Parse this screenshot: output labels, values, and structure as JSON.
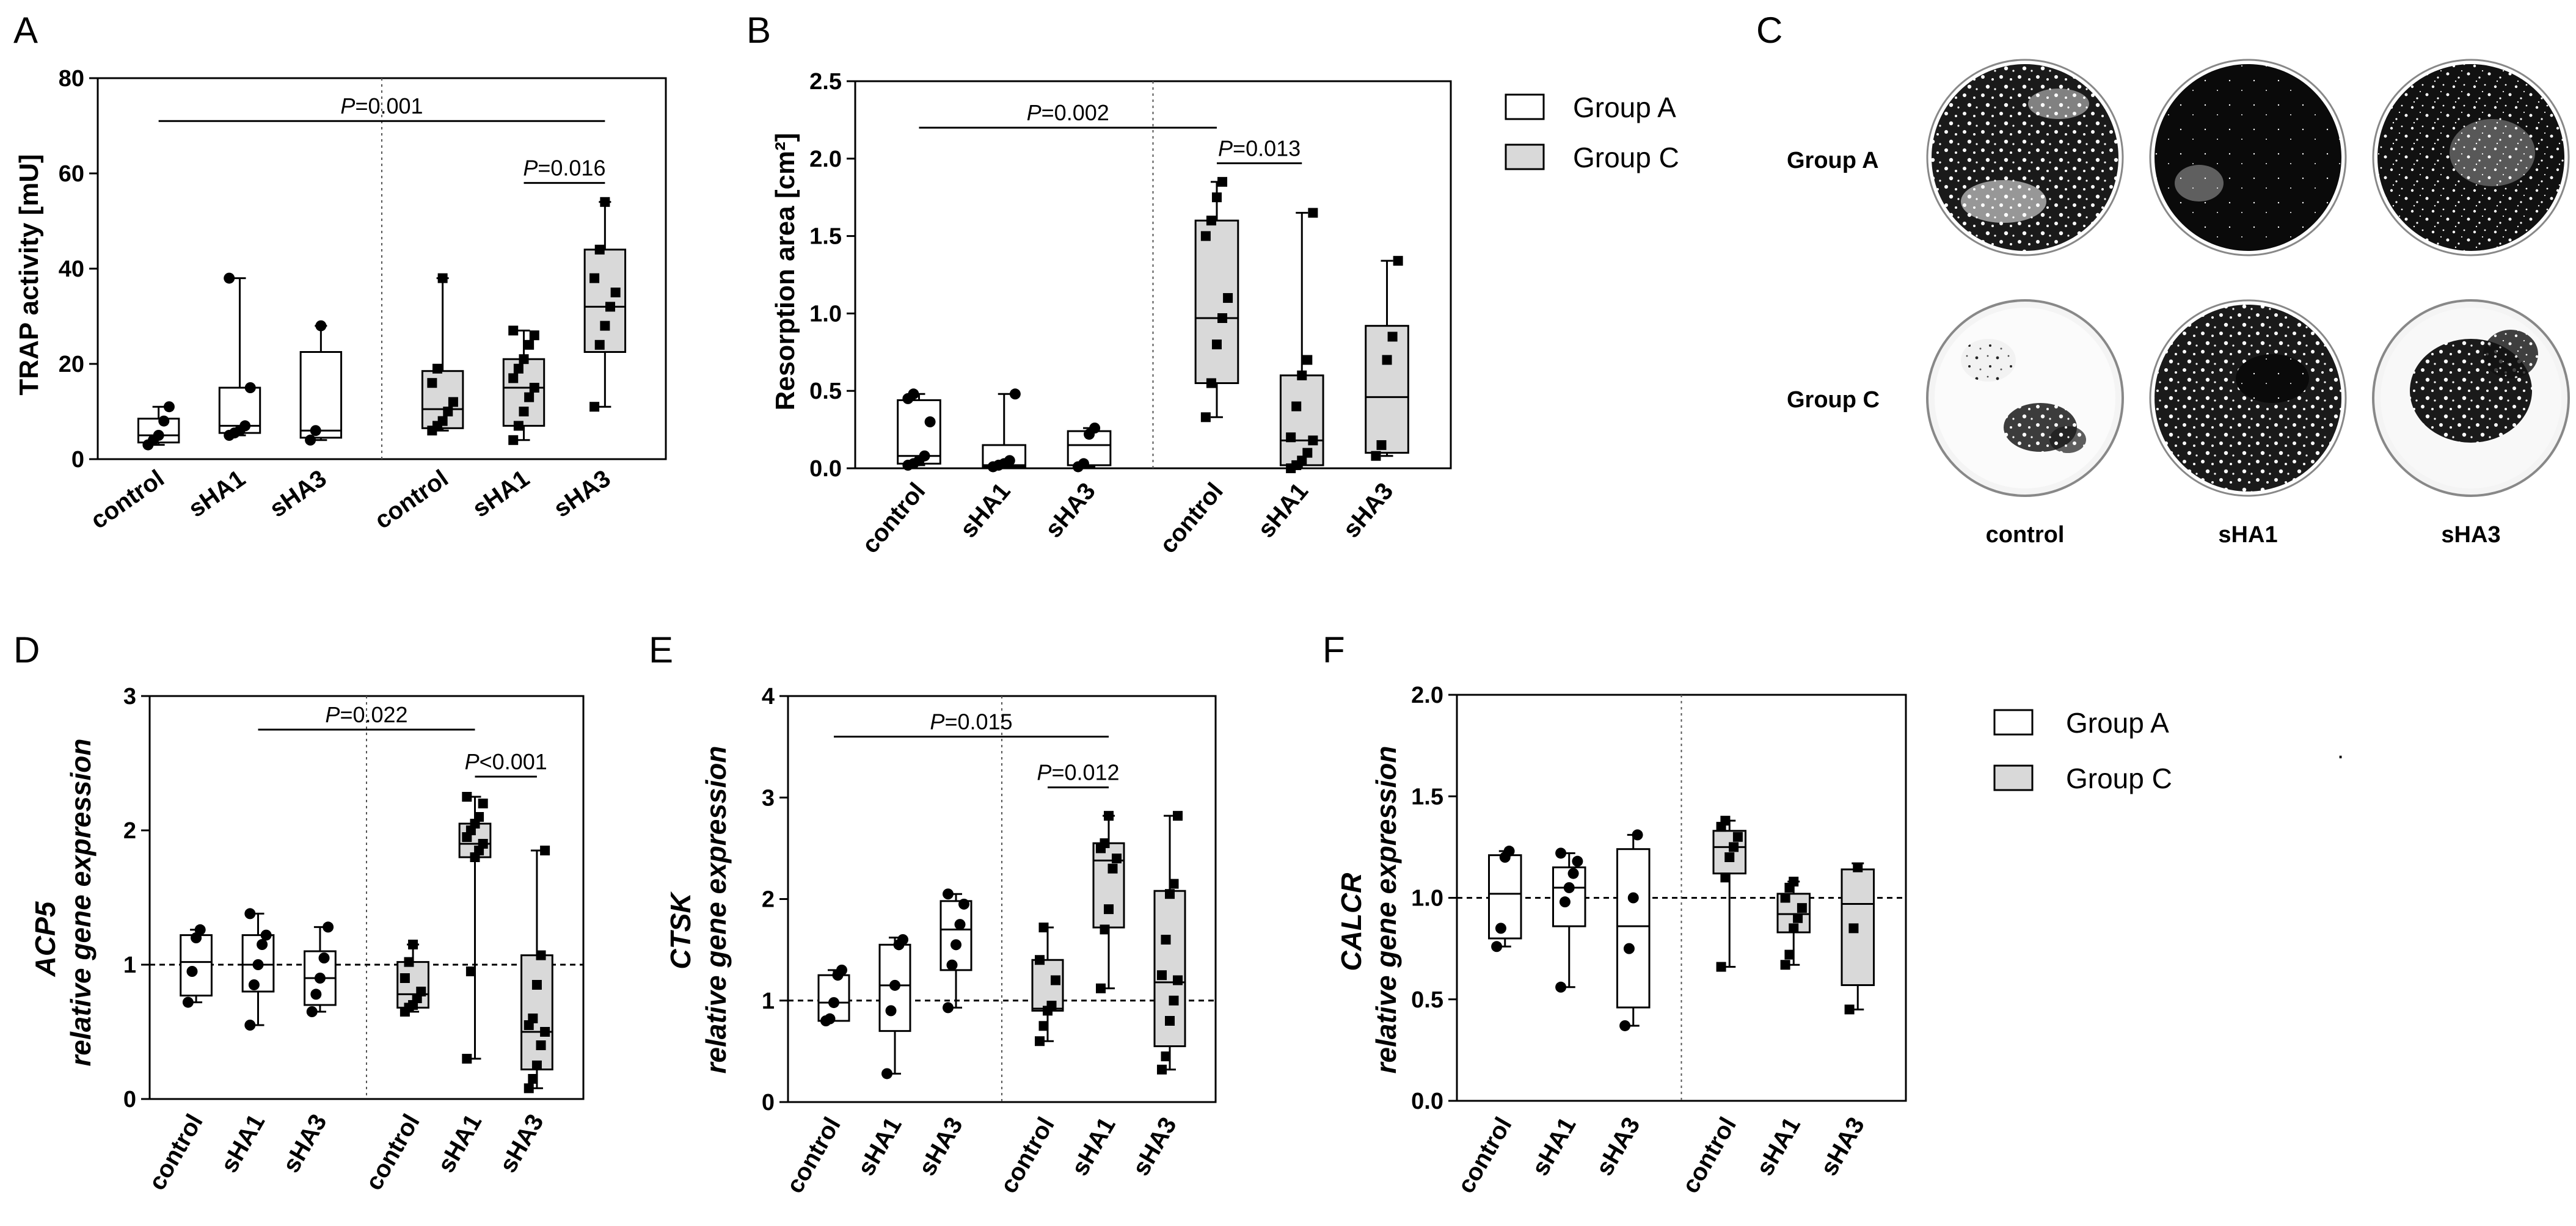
{
  "figure": {
    "legend_labels": [
      "Group A",
      "Group C"
    ],
    "colors": {
      "group_a_fill": "#ffffff",
      "group_c_fill": "#d9d9d9",
      "stroke": "#000000"
    },
    "stray_mark": "."
  },
  "chart_data": [
    {
      "id": "A",
      "panel_label": "A",
      "type": "box",
      "ylabel": "TRAP activity [mU]",
      "ylabel_italic": "",
      "ylim": [
        0,
        80
      ],
      "yticks": [
        0,
        20,
        40,
        60,
        80
      ],
      "ytick_labels": [
        "0",
        "20",
        "40",
        "60",
        "80"
      ],
      "categories": [
        "control",
        "sHA1",
        "sHA3",
        "control",
        "sHA1",
        "sHA3"
      ],
      "groups": [
        "Group A",
        "Group A",
        "Group A",
        "Group C",
        "Group C",
        "Group C"
      ],
      "boxes": [
        {
          "min": 3,
          "q1": 3.5,
          "median": 5,
          "q3": 8.5,
          "max": 11,
          "points": [
            3,
            4,
            5,
            8,
            11
          ]
        },
        {
          "min": 5,
          "q1": 5.5,
          "median": 7,
          "q3": 15,
          "max": 38,
          "points": [
            5,
            5.5,
            6,
            7,
            15,
            38
          ]
        },
        {
          "min": 4,
          "q1": 4.5,
          "median": 6,
          "q3": 22.5,
          "max": 28,
          "points": [
            4,
            6,
            28
          ]
        },
        {
          "min": 6,
          "q1": 6.5,
          "median": 10.5,
          "q3": 18.5,
          "max": 38,
          "points": [
            6,
            7,
            8,
            10,
            12,
            16,
            19,
            38
          ]
        },
        {
          "min": 4,
          "q1": 7,
          "median": 15,
          "q3": 21,
          "max": 27,
          "points": [
            4,
            7,
            10,
            13,
            15,
            17,
            19,
            21,
            24,
            26,
            27
          ]
        },
        {
          "min": 11,
          "q1": 22.5,
          "median": 32,
          "q3": 44,
          "max": 54,
          "points": [
            11,
            24,
            28,
            32,
            35,
            38,
            44,
            54
          ]
        }
      ],
      "refline": null,
      "comparisons": [
        {
          "from": 0,
          "to": 5,
          "y": 71,
          "prefix": "P",
          "text": "=0.001"
        },
        {
          "from": 4,
          "to": 5,
          "y": 58,
          "prefix": "P",
          "text": "=0.016"
        }
      ]
    },
    {
      "id": "B",
      "panel_label": "B",
      "type": "box",
      "ylabel": "Resorption area [cm²]",
      "ylabel_italic": "",
      "ylim": [
        0,
        2.5
      ],
      "yticks": [
        0,
        0.5,
        1,
        1.5,
        2,
        2.5
      ],
      "ytick_labels": [
        "0.0",
        "0.5",
        "1.0",
        "1.5",
        "2.0",
        "2.5"
      ],
      "categories": [
        "control",
        "sHA1",
        "sHA3",
        "control",
        "sHA1",
        "sHA3"
      ],
      "groups": [
        "Group A",
        "Group A",
        "Group A",
        "Group C",
        "Group C",
        "Group C"
      ],
      "boxes": [
        {
          "min": 0.02,
          "q1": 0.03,
          "median": 0.08,
          "q3": 0.44,
          "max": 0.48,
          "points": [
            0.02,
            0.03,
            0.05,
            0.08,
            0.3,
            0.45,
            0.48
          ]
        },
        {
          "min": 0.01,
          "q1": 0.01,
          "median": 0.02,
          "q3": 0.15,
          "max": 0.48,
          "points": [
            0.01,
            0.02,
            0.03,
            0.05,
            0.48
          ]
        },
        {
          "min": 0.01,
          "q1": 0.02,
          "median": 0.15,
          "q3": 0.24,
          "max": 0.26,
          "points": [
            0.01,
            0.03,
            0.22,
            0.26
          ]
        },
        {
          "min": 0.33,
          "q1": 0.55,
          "median": 0.97,
          "q3": 1.6,
          "max": 1.85,
          "points": [
            0.33,
            0.55,
            0.8,
            0.97,
            1.1,
            1.5,
            1.6,
            1.75,
            1.85
          ]
        },
        {
          "min": 0.0,
          "q1": 0.02,
          "median": 0.18,
          "q3": 0.6,
          "max": 1.65,
          "points": [
            0.0,
            0.02,
            0.05,
            0.1,
            0.18,
            0.2,
            0.4,
            0.6,
            0.7,
            1.65
          ]
        },
        {
          "min": 0.08,
          "q1": 0.1,
          "median": 0.46,
          "q3": 0.92,
          "max": 1.34,
          "points": [
            0.08,
            0.15,
            0.7,
            0.85,
            1.34
          ]
        }
      ],
      "refline": null,
      "comparisons": [
        {
          "from": 0,
          "to": 3,
          "y": 2.2,
          "prefix": "P",
          "text": "=0.002"
        },
        {
          "from": 3,
          "to": 4,
          "y": 1.97,
          "prefix": "P",
          "text": "=0.013"
        }
      ]
    },
    {
      "id": "D",
      "panel_label": "D",
      "type": "box",
      "ylabel": "relative gene expression",
      "ylabel_italic": "ACP5",
      "ylim": [
        0,
        3
      ],
      "yticks": [
        0,
        1,
        2,
        3
      ],
      "ytick_labels": [
        "0",
        "1",
        "2",
        "3"
      ],
      "categories": [
        "control",
        "sHA1",
        "sHA3",
        "control",
        "sHA1",
        "sHA3"
      ],
      "groups": [
        "Group A",
        "Group A",
        "Group A",
        "Group C",
        "Group C",
        "Group C"
      ],
      "boxes": [
        {
          "min": 0.72,
          "q1": 0.77,
          "median": 1.02,
          "q3": 1.22,
          "max": 1.26,
          "points": [
            0.72,
            0.95,
            1.2,
            1.26
          ]
        },
        {
          "min": 0.55,
          "q1": 0.8,
          "median": 1.0,
          "q3": 1.22,
          "max": 1.38,
          "points": [
            0.55,
            0.85,
            1.0,
            1.15,
            1.22,
            1.38
          ]
        },
        {
          "min": 0.65,
          "q1": 0.7,
          "median": 0.9,
          "q3": 1.1,
          "max": 1.28,
          "points": [
            0.65,
            0.78,
            0.9,
            1.05,
            1.28
          ]
        },
        {
          "min": 0.65,
          "q1": 0.68,
          "median": 0.78,
          "q3": 1.02,
          "max": 1.15,
          "points": [
            0.65,
            0.68,
            0.7,
            0.75,
            0.8,
            0.9,
            1.02,
            1.15
          ]
        },
        {
          "min": 0.3,
          "q1": 1.8,
          "median": 1.9,
          "q3": 2.05,
          "max": 2.25,
          "points": [
            0.3,
            0.95,
            1.8,
            1.85,
            1.9,
            1.95,
            2.0,
            2.05,
            2.1,
            2.2,
            2.25
          ]
        },
        {
          "min": 0.08,
          "q1": 0.22,
          "median": 0.5,
          "q3": 1.07,
          "max": 1.85,
          "points": [
            0.08,
            0.15,
            0.25,
            0.4,
            0.5,
            0.55,
            0.6,
            0.85,
            1.07,
            1.85
          ]
        }
      ],
      "refline": 1,
      "comparisons": [
        {
          "from": 1,
          "to": 4,
          "y": 2.75,
          "prefix": "P",
          "text": "=0.022"
        },
        {
          "from": 4,
          "to": 5,
          "y": 2.4,
          "prefix": "P",
          "text": "<0.001"
        }
      ]
    },
    {
      "id": "E",
      "panel_label": "E",
      "type": "box",
      "ylabel": "relative gene expression",
      "ylabel_italic": "CTSK",
      "ylim": [
        0,
        4
      ],
      "yticks": [
        0,
        1,
        2,
        3,
        4
      ],
      "ytick_labels": [
        "0",
        "1",
        "2",
        "3",
        "4"
      ],
      "categories": [
        "control",
        "sHA1",
        "sHA3",
        "control",
        "sHA1",
        "sHA3"
      ],
      "groups": [
        "Group A",
        "Group A",
        "Group A",
        "Group C",
        "Group C",
        "Group C"
      ],
      "boxes": [
        {
          "min": 0.8,
          "q1": 0.8,
          "median": 0.98,
          "q3": 1.25,
          "max": 1.3,
          "points": [
            0.8,
            0.82,
            0.98,
            1.25,
            1.3
          ]
        },
        {
          "min": 0.28,
          "q1": 0.7,
          "median": 1.15,
          "q3": 1.55,
          "max": 1.62,
          "points": [
            0.28,
            0.9,
            1.15,
            1.55,
            1.6
          ]
        },
        {
          "min": 0.93,
          "q1": 1.3,
          "median": 1.7,
          "q3": 1.98,
          "max": 2.05,
          "points": [
            0.93,
            1.35,
            1.55,
            1.75,
            1.95,
            2.05
          ]
        },
        {
          "min": 0.6,
          "q1": 0.9,
          "median": 0.92,
          "q3": 1.4,
          "max": 1.72,
          "points": [
            0.6,
            0.75,
            0.9,
            0.95,
            1.2,
            1.4,
            1.72
          ]
        },
        {
          "min": 1.12,
          "q1": 1.72,
          "median": 2.38,
          "q3": 2.55,
          "max": 2.82,
          "points": [
            1.12,
            1.7,
            1.9,
            2.3,
            2.4,
            2.5,
            2.55,
            2.82
          ]
        },
        {
          "min": 0.32,
          "q1": 0.55,
          "median": 1.18,
          "q3": 2.08,
          "max": 2.82,
          "points": [
            0.32,
            0.45,
            0.8,
            1.0,
            1.2,
            1.25,
            1.6,
            2.05,
            2.15,
            2.82
          ]
        }
      ],
      "refline": 1,
      "comparisons": [
        {
          "from": 0,
          "to": 4,
          "y": 3.6,
          "prefix": "P",
          "text": "=0.015"
        },
        {
          "from": 3,
          "to": 4,
          "y": 3.1,
          "prefix": "P",
          "text": "=0.012"
        }
      ]
    },
    {
      "id": "F",
      "panel_label": "F",
      "type": "box",
      "ylabel": "relative gene expression",
      "ylabel_italic": "CALCR",
      "ylim": [
        0,
        2
      ],
      "yticks": [
        0,
        0.5,
        1,
        1.5,
        2
      ],
      "ytick_labels": [
        "0.0",
        "0.5",
        "1.0",
        "1.5",
        "2.0"
      ],
      "categories": [
        "control",
        "sHA1",
        "sHA3",
        "control",
        "sHA1",
        "sHA3"
      ],
      "groups": [
        "Group A",
        "Group A",
        "Group A",
        "Group C",
        "Group C",
        "Group C"
      ],
      "boxes": [
        {
          "min": 0.76,
          "q1": 0.8,
          "median": 1.02,
          "q3": 1.21,
          "max": 1.23,
          "points": [
            0.76,
            0.85,
            1.2,
            1.23
          ]
        },
        {
          "min": 0.56,
          "q1": 0.86,
          "median": 1.05,
          "q3": 1.15,
          "max": 1.22,
          "points": [
            0.56,
            0.98,
            1.05,
            1.12,
            1.18,
            1.22
          ]
        },
        {
          "min": 0.37,
          "q1": 0.46,
          "median": 0.86,
          "q3": 1.24,
          "max": 1.31,
          "points": [
            0.37,
            0.75,
            1.0,
            1.31
          ]
        },
        {
          "min": 0.66,
          "q1": 1.12,
          "median": 1.25,
          "q3": 1.33,
          "max": 1.38,
          "points": [
            0.66,
            1.1,
            1.2,
            1.25,
            1.3,
            1.35,
            1.38
          ]
        },
        {
          "min": 0.67,
          "q1": 0.83,
          "median": 0.92,
          "q3": 1.02,
          "max": 1.08,
          "points": [
            0.67,
            0.72,
            0.85,
            0.9,
            0.95,
            1.0,
            1.05,
            1.08
          ]
        },
        {
          "min": 0.45,
          "q1": 0.57,
          "median": 0.97,
          "q3": 1.14,
          "max": 1.17,
          "points": [
            0.45,
            0.85,
            1.15
          ]
        }
      ],
      "refline": 1,
      "comparisons": []
    }
  ],
  "panel_c": {
    "panel_label": "C",
    "row_labels": [
      "Group A",
      "Group C"
    ],
    "column_labels": [
      "control",
      "sHA1",
      "sHA3"
    ]
  }
}
